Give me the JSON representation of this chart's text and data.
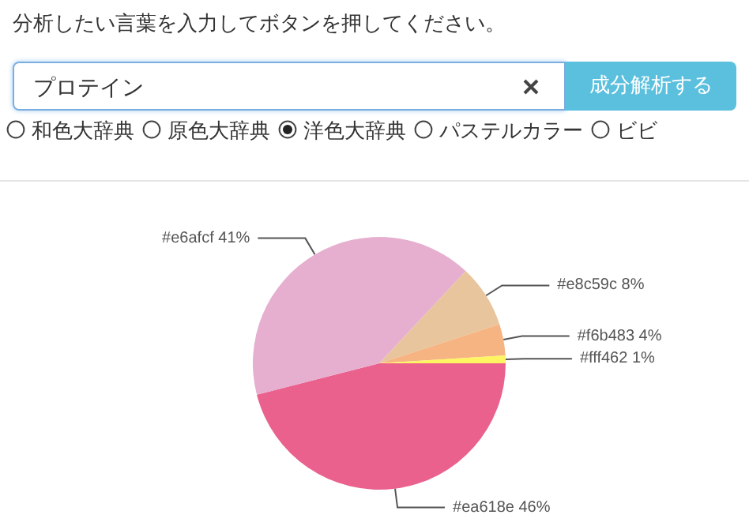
{
  "chart_data": {
    "type": "pie",
    "title": "分析したい言葉を入力してボタンを押してください。",
    "annotations": [
      "プロテイン",
      "成分解析する",
      "和色大辞典",
      "原色大辞典",
      "洋色大辞典",
      "パステルカラー",
      "ビビ"
    ],
    "categories": [
      "#ea618e",
      "#e6afcf",
      "#e8c59c",
      "#f6b483",
      "#fff462"
    ],
    "values": [
      46,
      41,
      8,
      4,
      1
    ],
    "colors": [
      "#ea618e",
      "#e6afcf",
      "#e8c59c",
      "#f6b483",
      "#fff462"
    ],
    "value_labels": [
      "46%",
      "41%",
      "8%",
      "4%",
      "1%"
    ],
    "legend": false
  }
}
